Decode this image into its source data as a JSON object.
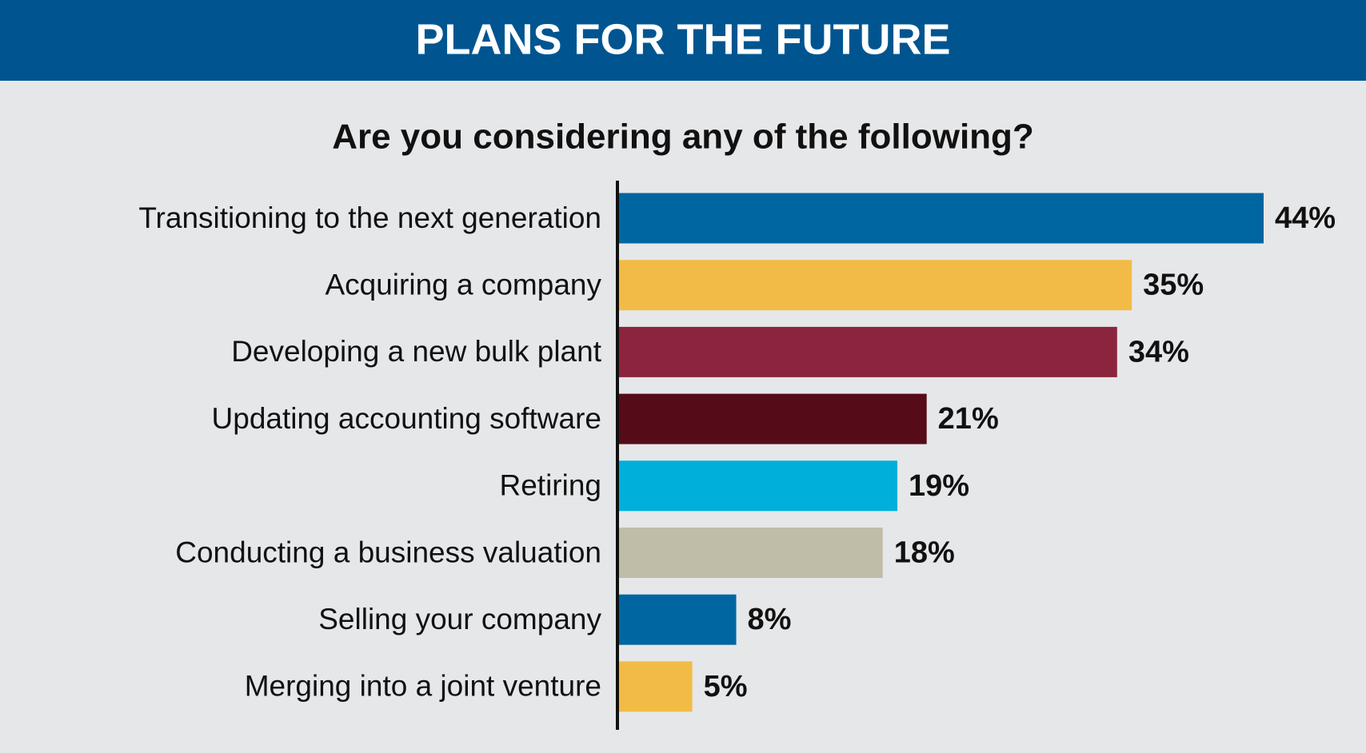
{
  "chart_data": {
    "type": "bar",
    "title": "PLANS FOR THE FUTURE",
    "subtitle": "Are you considering any of the following?",
    "categories": [
      "Transitioning to the next generation",
      "Acquiring a company",
      "Developing a new bulk plant",
      "Updating accounting software",
      "Retiring",
      "Conducting a business valuation",
      "Selling your company",
      "Merging into a joint venture"
    ],
    "values": [
      44,
      35,
      34,
      21,
      19,
      18,
      8,
      5
    ],
    "value_labels": [
      "44%",
      "35%",
      "34%",
      "21%",
      "19%",
      "18%",
      "8%",
      "5%"
    ],
    "colors": [
      "#0066a1",
      "#f2bb45",
      "#8b253e",
      "#550c18",
      "#00b0da",
      "#bfbda7",
      "#0066a1",
      "#f2bb45"
    ]
  }
}
